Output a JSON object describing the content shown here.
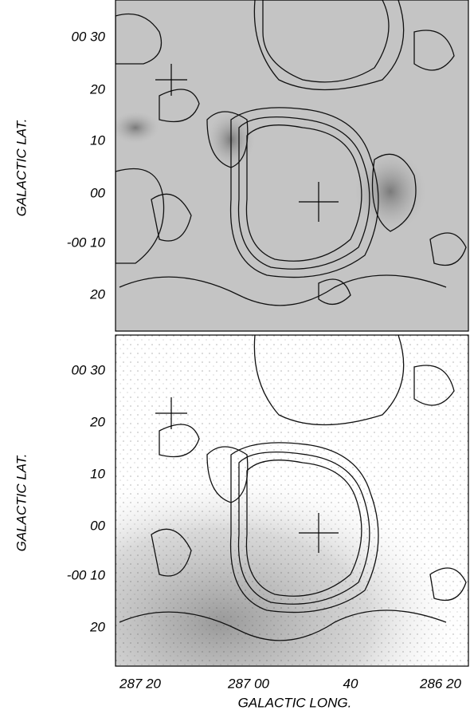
{
  "panels": [
    {
      "y_axis_label": "GALACTIC LAT.",
      "y_tick_labels": [
        "00 30",
        "20",
        "10",
        "00",
        "-00 10",
        "20"
      ]
    },
    {
      "y_axis_label": "GALACTIC LAT.",
      "y_tick_labels": [
        "00 30",
        "20",
        "10",
        "00",
        "-00 10",
        "20"
      ]
    }
  ],
  "x_axis_label": "GALACTIC LONG.",
  "x_tick_labels": [
    "287 20",
    "287 00",
    "40",
    "286 20"
  ]
}
